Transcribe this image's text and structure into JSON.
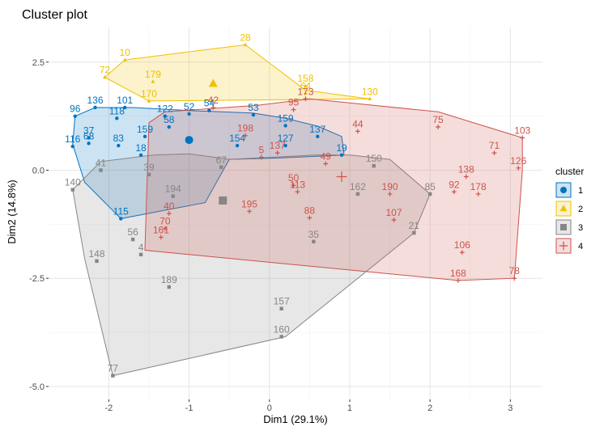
{
  "chart_data": {
    "type": "scatter",
    "title": "Cluster plot",
    "xlabel": "Dim1 (29.1%)",
    "ylabel": "Dim2 (14.8%)",
    "xlim": [
      -2.75,
      3.4
    ],
    "ylim": [
      -5.3,
      3.3
    ],
    "xticks": [
      -2,
      -1,
      0,
      1,
      2,
      3
    ],
    "yticks": [
      -5.0,
      -2.5,
      0.0,
      2.5
    ],
    "xtick_labels": [
      "-2",
      "-1",
      "0",
      "1",
      "2",
      "3"
    ],
    "ytick_labels": [
      "-5.0",
      "-2.5",
      "0.0",
      "2.5"
    ],
    "grid": true,
    "legend": {
      "title": "cluster",
      "placement": "right",
      "entries": [
        "1",
        "2",
        "3",
        "4"
      ]
    },
    "colors": {
      "1": "#0073C2",
      "2": "#EFC000",
      "3": "#868686",
      "4": "#CD534C"
    },
    "series": [
      {
        "name": "1",
        "marker": "circle",
        "hull": [
          [
            -2.45,
            0.6
          ],
          [
            -2.42,
            1.25
          ],
          [
            -2.17,
            1.45
          ],
          [
            -1.7,
            1.45
          ],
          [
            -1.0,
            1.38
          ],
          [
            -0.2,
            1.32
          ],
          [
            0.2,
            1.2
          ],
          [
            0.6,
            1.02
          ],
          [
            0.9,
            0.78
          ],
          [
            0.93,
            0.35
          ],
          [
            0.1,
            0.28
          ],
          [
            -0.5,
            0.25
          ],
          [
            -0.8,
            -0.75
          ],
          [
            -1.85,
            -1.12
          ],
          [
            -2.3,
            -0.28
          ]
        ],
        "centroid": [
          -1.0,
          0.7
        ],
        "points": [
          {
            "x": -2.45,
            "y": 0.55,
            "label": "116"
          },
          {
            "x": -2.42,
            "y": 1.25,
            "label": "96"
          },
          {
            "x": -2.17,
            "y": 1.45,
            "label": "136"
          },
          {
            "x": -1.8,
            "y": 1.45,
            "label": "101"
          },
          {
            "x": -1.9,
            "y": 1.2,
            "label": "118"
          },
          {
            "x": -1.88,
            "y": 0.57,
            "label": "83"
          },
          {
            "x": -2.25,
            "y": 0.75,
            "label": "37"
          },
          {
            "x": -2.25,
            "y": 0.62,
            "label": "68"
          },
          {
            "x": -1.55,
            "y": 0.78,
            "label": "159"
          },
          {
            "x": -1.3,
            "y": 1.25,
            "label": "122"
          },
          {
            "x": -1.0,
            "y": 1.3,
            "label": "52"
          },
          {
            "x": -0.75,
            "y": 1.38,
            "label": "54"
          },
          {
            "x": -1.25,
            "y": 1.0,
            "label": "58"
          },
          {
            "x": -1.6,
            "y": 0.35,
            "label": "18"
          },
          {
            "x": -1.85,
            "y": -1.12,
            "label": "115"
          },
          {
            "x": -0.2,
            "y": 1.28,
            "label": "53"
          },
          {
            "x": 0.2,
            "y": 1.03,
            "label": "159"
          },
          {
            "x": 0.2,
            "y": 0.57,
            "label": "127"
          },
          {
            "x": 0.6,
            "y": 0.78,
            "label": "137"
          },
          {
            "x": 0.9,
            "y": 0.35,
            "label": "19"
          },
          {
            "x": -0.4,
            "y": 0.57,
            "label": "154"
          }
        ]
      },
      {
        "name": "2",
        "marker": "triangle",
        "hull": [
          [
            -2.05,
            2.15
          ],
          [
            -1.8,
            2.55
          ],
          [
            -0.3,
            2.9
          ],
          [
            0.45,
            1.85
          ],
          [
            1.25,
            1.65
          ],
          [
            -1.5,
            1.6
          ]
        ],
        "centroid": [
          -0.7,
          2.0
        ],
        "points": [
          {
            "x": -2.05,
            "y": 2.15,
            "label": "72"
          },
          {
            "x": -1.8,
            "y": 2.55,
            "label": "10"
          },
          {
            "x": -0.3,
            "y": 2.9,
            "label": "28"
          },
          {
            "x": -1.45,
            "y": 2.05,
            "label": "179"
          },
          {
            "x": -1.5,
            "y": 1.6,
            "label": "170"
          },
          {
            "x": 0.45,
            "y": 1.95,
            "label": "158"
          },
          {
            "x": 0.45,
            "y": 1.78,
            "label": "64"
          },
          {
            "x": 1.25,
            "y": 1.65,
            "label": "130"
          }
        ]
      },
      {
        "name": "3",
        "marker": "square",
        "hull": [
          [
            -2.45,
            -0.45
          ],
          [
            -2.1,
            0.2
          ],
          [
            -1.45,
            0.35
          ],
          [
            -1.0,
            0.38
          ],
          [
            -0.5,
            0.25
          ],
          [
            0.55,
            0.35
          ],
          [
            1.0,
            0.35
          ],
          [
            1.5,
            0.25
          ],
          [
            2.0,
            -0.55
          ],
          [
            1.8,
            -1.45
          ],
          [
            0.2,
            -3.85
          ],
          [
            -1.95,
            -4.75
          ],
          [
            -2.3,
            -2.05
          ]
        ],
        "centroid": [
          -0.58,
          -0.7
        ],
        "points": [
          {
            "x": -2.45,
            "y": -0.45,
            "label": "140"
          },
          {
            "x": -1.95,
            "y": -4.75,
            "label": "77"
          },
          {
            "x": -2.15,
            "y": -2.1,
            "label": "148"
          },
          {
            "x": -1.25,
            "y": -2.7,
            "label": "189"
          },
          {
            "x": 0.15,
            "y": -3.2,
            "label": "157"
          },
          {
            "x": 0.15,
            "y": -3.85,
            "label": "160"
          },
          {
            "x": 1.8,
            "y": -1.45,
            "label": "21"
          },
          {
            "x": 2.0,
            "y": -0.55,
            "label": "85"
          },
          {
            "x": -1.2,
            "y": -0.6,
            "label": "194"
          },
          {
            "x": 0.55,
            "y": -1.65,
            "label": "35"
          },
          {
            "x": 1.1,
            "y": -0.55,
            "label": "162"
          },
          {
            "x": -1.7,
            "y": -1.6,
            "label": "56"
          },
          {
            "x": -0.6,
            "y": 0.07,
            "label": "67"
          },
          {
            "x": -2.1,
            "y": 0.0,
            "label": "41"
          },
          {
            "x": -1.5,
            "y": -0.1,
            "label": "39"
          },
          {
            "x": -1.6,
            "y": -1.95,
            "label": "4"
          },
          {
            "x": 1.3,
            "y": 0.1,
            "label": "150"
          }
        ]
      },
      {
        "name": "4",
        "marker": "plus",
        "hull": [
          [
            -1.5,
            1.1
          ],
          [
            -1.3,
            1.35
          ],
          [
            -0.15,
            1.5
          ],
          [
            0.5,
            1.65
          ],
          [
            2.1,
            1.35
          ],
          [
            2.45,
            1.15
          ],
          [
            3.15,
            0.75
          ],
          [
            3.15,
            0.0
          ],
          [
            3.05,
            -2.5
          ],
          [
            2.35,
            -2.55
          ],
          [
            -1.55,
            -1.85
          ]
        ],
        "centroid": [
          0.9,
          -0.15
        ],
        "points": [
          {
            "x": 0.45,
            "y": 1.65,
            "label": "173"
          },
          {
            "x": 2.1,
            "y": 1.0,
            "label": "75"
          },
          {
            "x": 3.15,
            "y": 0.75,
            "label": "103"
          },
          {
            "x": 3.1,
            "y": 0.05,
            "label": "126"
          },
          {
            "x": 3.05,
            "y": -2.5,
            "label": "78"
          },
          {
            "x": 2.35,
            "y": -2.55,
            "label": "168"
          },
          {
            "x": 2.4,
            "y": -1.9,
            "label": "106"
          },
          {
            "x": 1.1,
            "y": 0.9,
            "label": "44"
          },
          {
            "x": 0.5,
            "y": -1.1,
            "label": "88"
          },
          {
            "x": -0.25,
            "y": -0.95,
            "label": "195"
          },
          {
            "x": 1.55,
            "y": -1.15,
            "label": "107"
          },
          {
            "x": -1.3,
            "y": -1.35,
            "label": "70"
          },
          {
            "x": -1.35,
            "y": -1.55,
            "label": "161"
          },
          {
            "x": -1.25,
            "y": -1.0,
            "label": "40"
          },
          {
            "x": 0.1,
            "y": 0.4,
            "label": "137"
          },
          {
            "x": 0.3,
            "y": -0.35,
            "label": "50"
          },
          {
            "x": 0.7,
            "y": 0.15,
            "label": "49"
          },
          {
            "x": 1.5,
            "y": -0.55,
            "label": "190"
          },
          {
            "x": 2.3,
            "y": -0.5,
            "label": "92"
          },
          {
            "x": 2.6,
            "y": -0.55,
            "label": "178"
          },
          {
            "x": 2.45,
            "y": -0.15,
            "label": "138"
          },
          {
            "x": 2.8,
            "y": 0.4,
            "label": "71"
          },
          {
            "x": -0.7,
            "y": 1.45,
            "label": "42"
          },
          {
            "x": -0.3,
            "y": 0.8,
            "label": "198"
          },
          {
            "x": 0.3,
            "y": 1.4,
            "label": "95"
          },
          {
            "x": -0.1,
            "y": 0.3,
            "label": "5"
          },
          {
            "x": 0.35,
            "y": -0.5,
            "label": "113"
          }
        ]
      }
    ]
  }
}
